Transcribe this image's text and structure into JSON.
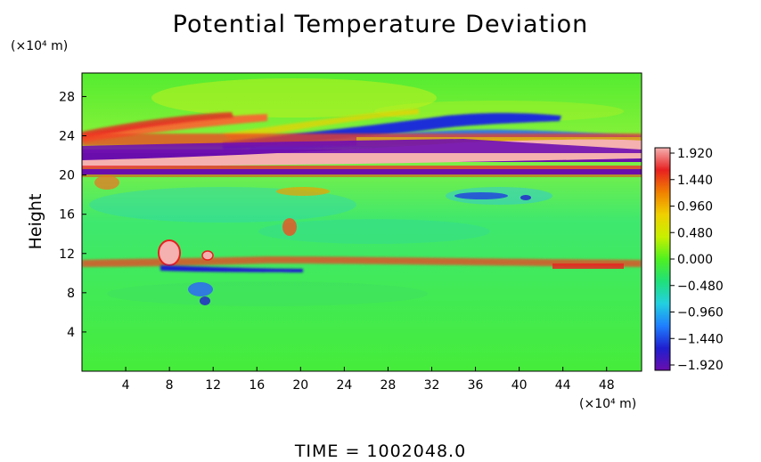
{
  "chart_data": {
    "type": "heatmap",
    "title": "Potential Temperature Deviation",
    "ylabel": "Height",
    "yunit": "(×10⁴ m)",
    "xunit": "(×10⁴ m)",
    "x_ticks": [
      4,
      8,
      12,
      16,
      20,
      24,
      28,
      32,
      36,
      40,
      44,
      48
    ],
    "y_ticks": [
      4,
      8,
      12,
      16,
      20,
      24,
      28
    ],
    "xlim": [
      0,
      51.2
    ],
    "ylim": [
      0,
      30.4
    ],
    "colorbar": {
      "ticks": [
        "1.920",
        "1.440",
        "0.960",
        "0.480",
        "0.000",
        "−0.480",
        "−0.960",
        "−1.440",
        "−1.920"
      ],
      "range": [
        -1.92,
        1.92
      ],
      "colors": [
        "#6a0dad",
        "#1f1fcf",
        "#1f7fff",
        "#22d0e0",
        "#20e07a",
        "#50f020",
        "#c8f000",
        "#f0d000",
        "#f08000",
        "#e82020",
        "#f5b0b0"
      ]
    },
    "features": [
      {
        "label": "warm band",
        "y_range": [
          20.2,
          21.4
        ],
        "value": 1.92
      },
      {
        "label": "cold band",
        "y_range": [
          21.4,
          22.6
        ],
        "value": -1.92
      },
      {
        "label": "cold band",
        "y_range": [
          19.8,
          20.2
        ],
        "value": -1.92
      },
      {
        "label": "warm layer",
        "y_range": [
          22.6,
          24.0
        ],
        "value": 1.4
      },
      {
        "label": "warm layer",
        "y_range": [
          10.4,
          11.2
        ],
        "value": 1.3
      },
      {
        "label": "cold layer",
        "y_range": [
          9.4,
          10.2
        ],
        "value": -1.5
      }
    ]
  },
  "footer": {
    "time_text": "TIME  =  1002048.0"
  }
}
